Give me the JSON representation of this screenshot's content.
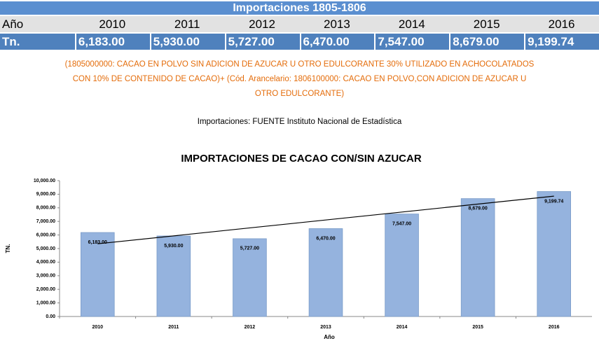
{
  "table": {
    "title": "Importaciones 1805-1806",
    "header": [
      "Año",
      "2010",
      "2011",
      "2012",
      "2013",
      "2014",
      "2015",
      "2016"
    ],
    "rows": [
      [
        "Tn.",
        "6,183.00",
        "5,930.00",
        "5,727.00",
        "6,470.00",
        "7,547.00",
        "8,679.00",
        "9,199.74"
      ]
    ]
  },
  "notes": [
    "(1805000000: CACAO EN POLVO SIN ADICION DE AZUCAR U OTRO EDULCORANTE 30% UTILIZADO EN ACHOCOLATADOS",
    "CON 10% DE CONTENIDO DE CACAO)+ (Cód. Arancelario: 1806100000: CACAO EN POLVO,CON ADICION DE AZUCAR U",
    "OTRO EDULCORANTE)"
  ],
  "source": "Importaciones: FUENTE Instituto Nacional de Estadística",
  "chart_data": {
    "type": "bar",
    "title": "IMPORTACIONES DE CACAO CON/SIN AZUCAR",
    "x_label": "Año",
    "y_label": "TN.",
    "categories": [
      "2010",
      "2011",
      "2012",
      "2013",
      "2014",
      "2015",
      "2016"
    ],
    "values": [
      6183,
      5930,
      5727,
      6470,
      7547,
      8679,
      9199.74
    ],
    "value_labels": [
      "6,183.00",
      "5,930.00",
      "5,727.00",
      "6,470.00",
      "7,547.00",
      "8,679.00",
      "9,199.74"
    ],
    "color": "#95b3de",
    "trendline": true,
    "grid": false,
    "ylim": [
      0,
      10000
    ],
    "yticks": [
      {
        "value": 0,
        "label": "0.00"
      },
      {
        "value": 1000,
        "label": "1,000.00"
      },
      {
        "value": 2000,
        "label": "2,000.00"
      },
      {
        "value": 3000,
        "label": "3,000.00"
      },
      {
        "value": 4000,
        "label": "4,000.00"
      },
      {
        "value": 5000,
        "label": "5,000.00"
      },
      {
        "value": 6000,
        "label": "6,000.00"
      },
      {
        "value": 7000,
        "label": "7,000.00"
      },
      {
        "value": 8000,
        "label": "8,000.00"
      },
      {
        "value": 9000,
        "label": "9,000.00"
      },
      {
        "value": 10000,
        "label": "10,000.00"
      }
    ]
  }
}
